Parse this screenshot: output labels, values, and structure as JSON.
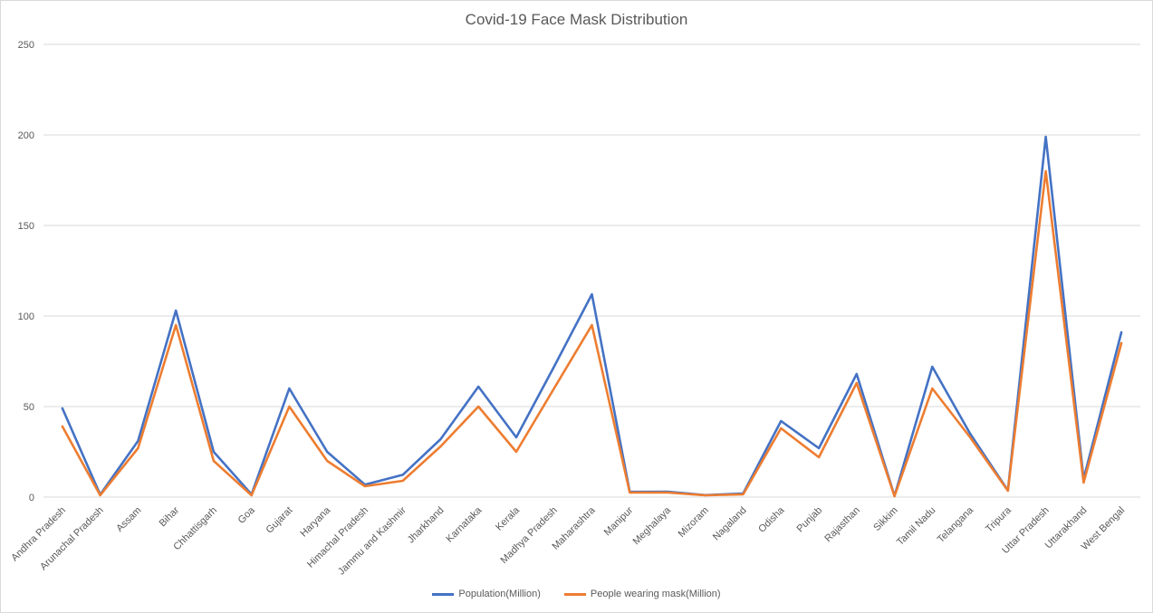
{
  "chart_data": {
    "type": "line",
    "title": "Covid-19 Face Mask Distribution",
    "xlabel": "",
    "ylabel": "",
    "ylim": [
      0,
      250
    ],
    "yticks": [
      0,
      50,
      100,
      150,
      200,
      250
    ],
    "grid": true,
    "legend_position": "bottom",
    "categories": [
      "Andhra Pradesh",
      "Arunachal Pradesh",
      "Assam",
      "Bihar",
      "Chhattisgarh",
      "Goa",
      "Gujarat",
      "Haryana",
      "Himachal Pradesh",
      "Jammu and Kashmir",
      "Jharkhand",
      "Karnataka",
      "Kerala",
      "Madhya Pradesh",
      "Maharashtra",
      "Manipur",
      "Meghalaya",
      "Mizoram",
      "Nagaland",
      "Odisha",
      "Punjab",
      "Rajasthan",
      "Sikkim",
      "Tamil Nadu",
      "Telangana",
      "Tripura",
      "Uttar Pradesh",
      "Uttarakhand",
      "West Bengal"
    ],
    "series": [
      {
        "name": "Population(Million)",
        "color": "#4472c4",
        "values": [
          49,
          1.4,
          31,
          103,
          25,
          1.5,
          60,
          25,
          6.9,
          12.3,
          32,
          61,
          33,
          72,
          112,
          2.9,
          3,
          1.1,
          2,
          42,
          27,
          68,
          0.6,
          72,
          35,
          3.7,
          199,
          10,
          91
        ]
      },
      {
        "name": "People wearing mask(Million)",
        "color": "#ed7d31",
        "values": [
          39,
          1,
          27,
          95,
          20,
          1,
          50,
          20,
          6,
          9,
          28,
          50,
          25,
          60,
          95,
          2.5,
          2.5,
          1,
          1.5,
          38,
          22,
          63,
          0.5,
          60,
          33,
          3.5,
          180,
          8,
          85
        ]
      }
    ]
  }
}
